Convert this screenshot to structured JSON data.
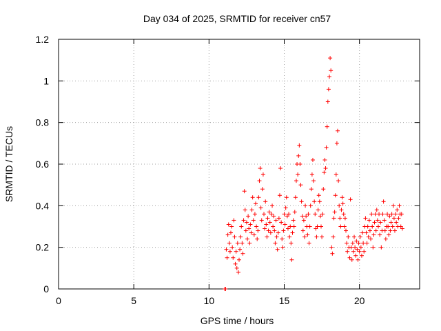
{
  "chart_data": {
    "type": "scatter",
    "title": "Day 034 of 2025, SRMTID for receiver cn57",
    "xlabel": "GPS time / hours",
    "ylabel": "SRMTID / TECUs",
    "xlim": [
      0,
      24
    ],
    "ylim": [
      0,
      1.2
    ],
    "xticks": [
      0,
      5,
      10,
      15,
      20
    ],
    "yticks": [
      0,
      0.2,
      0.4,
      0.6,
      0.8,
      1,
      1.2
    ],
    "ytick_labels": [
      "0",
      "0.2",
      "0.4",
      "0.6",
      "0.8",
      "1",
      "1.2"
    ],
    "grid": true,
    "marker": "+",
    "color": "#ff0000",
    "series": [
      {
        "name": "SRMTID",
        "points": [
          [
            11.05,
            0.0
          ],
          [
            11.1,
            0.0
          ],
          [
            11.15,
            0.19
          ],
          [
            11.2,
            0.15
          ],
          [
            11.25,
            0.26
          ],
          [
            11.3,
            0.31
          ],
          [
            11.35,
            0.22
          ],
          [
            11.4,
            0.18
          ],
          [
            11.45,
            0.27
          ],
          [
            11.5,
            0.3
          ],
          [
            11.55,
            0.2
          ],
          [
            11.6,
            0.15
          ],
          [
            11.65,
            0.33
          ],
          [
            11.7,
            0.25
          ],
          [
            11.75,
            0.12
          ],
          [
            11.8,
            0.18
          ],
          [
            11.85,
            0.1
          ],
          [
            11.9,
            0.22
          ],
          [
            11.95,
            0.08
          ],
          [
            12.0,
            0.14
          ],
          [
            12.05,
            0.19
          ],
          [
            12.1,
            0.25
          ],
          [
            12.15,
            0.3
          ],
          [
            12.2,
            0.22
          ],
          [
            12.25,
            0.17
          ],
          [
            12.3,
            0.33
          ],
          [
            12.35,
            0.47
          ],
          [
            12.4,
            0.38
          ],
          [
            12.45,
            0.28
          ],
          [
            12.5,
            0.32
          ],
          [
            12.55,
            0.24
          ],
          [
            12.6,
            0.35
          ],
          [
            12.65,
            0.29
          ],
          [
            12.7,
            0.22
          ],
          [
            12.75,
            0.31
          ],
          [
            12.8,
            0.27
          ],
          [
            12.85,
            0.38
          ],
          [
            12.9,
            0.44
          ],
          [
            12.95,
            0.33
          ],
          [
            13.0,
            0.26
          ],
          [
            13.05,
            0.36
          ],
          [
            13.1,
            0.41
          ],
          [
            13.15,
            0.3
          ],
          [
            13.2,
            0.24
          ],
          [
            13.25,
            0.28
          ],
          [
            13.3,
            0.44
          ],
          [
            13.35,
            0.52
          ],
          [
            13.4,
            0.58
          ],
          [
            13.45,
            0.39
          ],
          [
            13.5,
            0.33
          ],
          [
            13.55,
            0.48
          ],
          [
            13.6,
            0.55
          ],
          [
            13.65,
            0.36
          ],
          [
            13.7,
            0.29
          ],
          [
            13.75,
            0.42
          ],
          [
            13.8,
            0.31
          ],
          [
            13.85,
            0.25
          ],
          [
            13.9,
            0.34
          ],
          [
            13.95,
            0.28
          ],
          [
            14.0,
            0.37
          ],
          [
            14.05,
            0.32
          ],
          [
            14.1,
            0.27
          ],
          [
            14.15,
            0.36
          ],
          [
            14.2,
            0.4
          ],
          [
            14.25,
            0.3
          ],
          [
            14.3,
            0.35
          ],
          [
            14.35,
            0.28
          ],
          [
            14.4,
            0.22
          ],
          [
            14.45,
            0.33
          ],
          [
            14.5,
            0.25
          ],
          [
            14.55,
            0.19
          ],
          [
            14.6,
            0.27
          ],
          [
            14.65,
            0.34
          ],
          [
            14.7,
            0.45
          ],
          [
            14.75,
            0.58
          ],
          [
            14.8,
            0.32
          ],
          [
            14.85,
            0.24
          ],
          [
            14.9,
            0.2
          ],
          [
            14.95,
            0.28
          ],
          [
            15.0,
            0.36
          ],
          [
            15.05,
            0.31
          ],
          [
            15.1,
            0.39
          ],
          [
            15.15,
            0.44
          ],
          [
            15.2,
            0.35
          ],
          [
            15.25,
            0.29
          ],
          [
            15.3,
            0.36
          ],
          [
            15.35,
            0.25
          ],
          [
            15.4,
            0.3
          ],
          [
            15.45,
            0.22
          ],
          [
            15.5,
            0.14
          ],
          [
            15.55,
            0.27
          ],
          [
            15.6,
            0.33
          ],
          [
            15.65,
            0.3
          ],
          [
            15.7,
            0.37
          ],
          [
            15.75,
            0.44
          ],
          [
            15.8,
            0.52
          ],
          [
            15.85,
            0.6
          ],
          [
            15.9,
            0.55
          ],
          [
            15.95,
            0.64
          ],
          [
            16.0,
            0.69
          ],
          [
            16.05,
            0.6
          ],
          [
            16.1,
            0.5
          ],
          [
            16.15,
            0.42
          ],
          [
            16.2,
            0.35
          ],
          [
            16.25,
            0.28
          ],
          [
            16.3,
            0.33
          ],
          [
            16.35,
            0.25
          ],
          [
            16.4,
            0.4
          ],
          [
            16.45,
            0.35
          ],
          [
            16.5,
            0.3
          ],
          [
            16.55,
            0.26
          ],
          [
            16.6,
            0.36
          ],
          [
            16.65,
            0.22
          ],
          [
            16.7,
            0.3
          ],
          [
            16.75,
            0.4
          ],
          [
            16.8,
            0.48
          ],
          [
            16.85,
            0.55
          ],
          [
            16.9,
            0.62
          ],
          [
            16.95,
            0.52
          ],
          [
            17.0,
            0.42
          ],
          [
            17.05,
            0.36
          ],
          [
            17.1,
            0.29
          ],
          [
            17.15,
            0.25
          ],
          [
            17.2,
            0.3
          ],
          [
            17.25,
            0.38
          ],
          [
            17.3,
            0.45
          ],
          [
            17.35,
            0.42
          ],
          [
            17.4,
            0.35
          ],
          [
            17.45,
            0.3
          ],
          [
            17.5,
            0.25
          ],
          [
            17.55,
            0.36
          ],
          [
            17.6,
            0.48
          ],
          [
            17.65,
            0.56
          ],
          [
            17.7,
            0.62
          ],
          [
            17.75,
            0.58
          ],
          [
            17.8,
            0.68
          ],
          [
            17.85,
            0.78
          ],
          [
            17.9,
            0.9
          ],
          [
            17.95,
            0.96
          ],
          [
            18.0,
            1.02
          ],
          [
            18.05,
            1.11
          ],
          [
            18.1,
            1.05
          ],
          [
            18.15,
            0.2
          ],
          [
            18.2,
            0.17
          ],
          [
            18.25,
            0.25
          ],
          [
            18.3,
            0.34
          ],
          [
            18.35,
            0.37
          ],
          [
            18.4,
            0.45
          ],
          [
            18.45,
            0.55
          ],
          [
            18.5,
            0.7
          ],
          [
            18.55,
            0.76
          ],
          [
            18.6,
            0.52
          ],
          [
            18.65,
            0.4
          ],
          [
            18.7,
            0.34
          ],
          [
            18.75,
            0.3
          ],
          [
            18.8,
            0.38
          ],
          [
            18.85,
            0.44
          ],
          [
            18.9,
            0.41
          ],
          [
            18.95,
            0.36
          ],
          [
            19.0,
            0.3
          ],
          [
            19.05,
            0.34
          ],
          [
            19.1,
            0.28
          ],
          [
            19.15,
            0.22
          ],
          [
            19.2,
            0.18
          ],
          [
            19.25,
            0.25
          ],
          [
            19.3,
            0.2
          ],
          [
            19.35,
            0.15
          ],
          [
            19.4,
            0.43
          ],
          [
            19.45,
            0.2
          ],
          [
            19.5,
            0.14
          ],
          [
            19.55,
            0.22
          ],
          [
            19.6,
            0.18
          ],
          [
            19.65,
            0.25
          ],
          [
            19.7,
            0.2
          ],
          [
            19.75,
            0.16
          ],
          [
            19.8,
            0.23
          ],
          [
            19.85,
            0.19
          ],
          [
            19.9,
            0.14
          ],
          [
            19.95,
            0.22
          ],
          [
            20.0,
            0.18
          ],
          [
            20.05,
            0.25
          ],
          [
            20.1,
            0.2
          ],
          [
            20.15,
            0.16
          ],
          [
            20.2,
            0.27
          ],
          [
            20.25,
            0.22
          ],
          [
            20.3,
            0.18
          ],
          [
            20.35,
            0.3
          ],
          [
            20.4,
            0.34
          ],
          [
            20.45,
            0.27
          ],
          [
            20.5,
            0.22
          ],
          [
            20.55,
            0.3
          ],
          [
            20.6,
            0.25
          ],
          [
            20.65,
            0.33
          ],
          [
            20.7,
            0.28
          ],
          [
            20.75,
            0.24
          ],
          [
            20.8,
            0.36
          ],
          [
            20.85,
            0.3
          ],
          [
            20.9,
            0.2
          ],
          [
            20.95,
            0.26
          ],
          [
            21.0,
            0.32
          ],
          [
            21.05,
            0.36
          ],
          [
            21.1,
            0.28
          ],
          [
            21.15,
            0.38
          ],
          [
            21.2,
            0.33
          ],
          [
            21.25,
            0.3
          ],
          [
            21.3,
            0.36
          ],
          [
            21.35,
            0.26
          ],
          [
            21.4,
            0.32
          ],
          [
            21.45,
            0.2
          ],
          [
            21.5,
            0.28
          ],
          [
            21.55,
            0.36
          ],
          [
            21.6,
            0.42
          ],
          [
            21.65,
            0.33
          ],
          [
            21.7,
            0.28
          ],
          [
            21.75,
            0.24
          ],
          [
            21.8,
            0.3
          ],
          [
            21.85,
            0.36
          ],
          [
            21.9,
            0.3
          ],
          [
            21.95,
            0.26
          ],
          [
            22.0,
            0.35
          ],
          [
            22.05,
            0.28
          ],
          [
            22.1,
            0.32
          ],
          [
            22.15,
            0.36
          ],
          [
            22.2,
            0.3
          ],
          [
            22.25,
            0.4
          ],
          [
            22.3,
            0.34
          ],
          [
            22.35,
            0.28
          ],
          [
            22.4,
            0.36
          ],
          [
            22.45,
            0.32
          ],
          [
            22.5,
            0.38
          ],
          [
            22.55,
            0.3
          ],
          [
            22.6,
            0.34
          ],
          [
            22.65,
            0.4
          ],
          [
            22.7,
            0.36
          ],
          [
            22.75,
            0.3
          ],
          [
            22.8,
            0.36
          ],
          [
            22.85,
            0.29
          ]
        ]
      }
    ]
  }
}
